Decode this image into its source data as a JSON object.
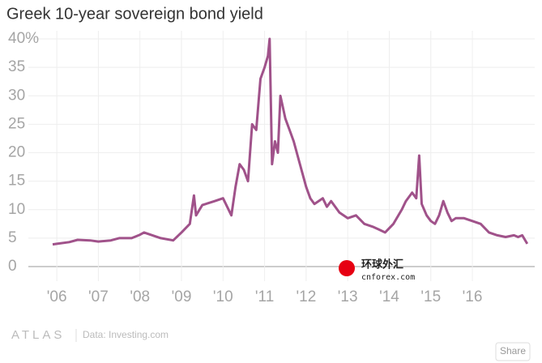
{
  "chart_data": {
    "type": "line",
    "title": "Greek 10-year sovereign bond yield",
    "x": [
      2005.9,
      2006.0,
      2006.3,
      2006.5,
      2006.8,
      2007.0,
      2007.3,
      2007.5,
      2007.8,
      2008.0,
      2008.1,
      2008.5,
      2008.8,
      2009.0,
      2009.2,
      2009.3,
      2009.35,
      2009.5,
      2009.8,
      2010.0,
      2010.2,
      2010.3,
      2010.4,
      2010.5,
      2010.6,
      2010.7,
      2010.8,
      2010.9,
      2011.0,
      2011.08,
      2011.12,
      2011.18,
      2011.25,
      2011.32,
      2011.38,
      2011.5,
      2011.6,
      2011.7,
      2011.85,
      2012.0,
      2012.1,
      2012.2,
      2012.4,
      2012.5,
      2012.6,
      2012.8,
      2013.0,
      2013.2,
      2013.4,
      2013.6,
      2013.75,
      2013.9,
      2014.1,
      2014.3,
      2014.4,
      2014.55,
      2014.65,
      2014.72,
      2014.78,
      2014.9,
      2015.0,
      2015.1,
      2015.2,
      2015.3,
      2015.4,
      2015.5,
      2015.6,
      2015.8,
      2016.0,
      2016.2,
      2016.4,
      2016.6,
      2016.8,
      2017.0,
      2017.1,
      2017.2,
      2017.32
    ],
    "series": [
      {
        "name": "Greek 10-year yield",
        "color": "#a0528a",
        "values": [
          3.9,
          4.0,
          4.3,
          4.7,
          4.6,
          4.4,
          4.6,
          5.0,
          5.0,
          5.6,
          6.0,
          5.0,
          4.6,
          6.0,
          7.5,
          12.5,
          9.0,
          10.8,
          11.5,
          12.0,
          9.0,
          14.0,
          18.0,
          17.0,
          15.0,
          25.0,
          24.0,
          33.0,
          35.0,
          37.0,
          40.0,
          18.0,
          22.0,
          20.0,
          30.0,
          26.0,
          24.0,
          22.0,
          18.0,
          14.0,
          12.0,
          11.0,
          12.0,
          10.5,
          11.5,
          9.5,
          8.5,
          9.0,
          7.5,
          7.0,
          6.5,
          6.0,
          7.5,
          10.0,
          11.5,
          13.0,
          12.0,
          19.5,
          11.0,
          9.0,
          8.0,
          7.5,
          9.0,
          11.5,
          9.5,
          8.0,
          8.5,
          8.5,
          8.0,
          7.5,
          6.0,
          5.5,
          5.2,
          5.5,
          5.2,
          5.5,
          4.0
        ]
      }
    ],
    "xlim": [
      2005.51,
      2017.5
    ],
    "xticks": [
      {
        "value": 2006,
        "label": "'06"
      },
      {
        "value": 2007,
        "label": "'07"
      },
      {
        "value": 2008,
        "label": "'08"
      },
      {
        "value": 2009,
        "label": "'09"
      },
      {
        "value": 2010,
        "label": "'10"
      },
      {
        "value": 2011,
        "label": "'11"
      },
      {
        "value": 2012,
        "label": "'12"
      },
      {
        "value": 2013,
        "label": "'13"
      },
      {
        "value": 2014,
        "label": "'14"
      },
      {
        "value": 2015,
        "label": "'15"
      },
      {
        "value": 2016,
        "label": "'16"
      }
    ],
    "ylim": [
      0,
      40
    ],
    "yticks": [
      0,
      5,
      10,
      15,
      20,
      25,
      30,
      35,
      {
        "value": 40,
        "label": "40%"
      }
    ],
    "grid": true
  },
  "watermark": {
    "name": "环球外汇",
    "site": "cnforex.com"
  },
  "footer": {
    "brand": "ATLAS",
    "source": "Data: Investing.com",
    "button": "Share"
  }
}
